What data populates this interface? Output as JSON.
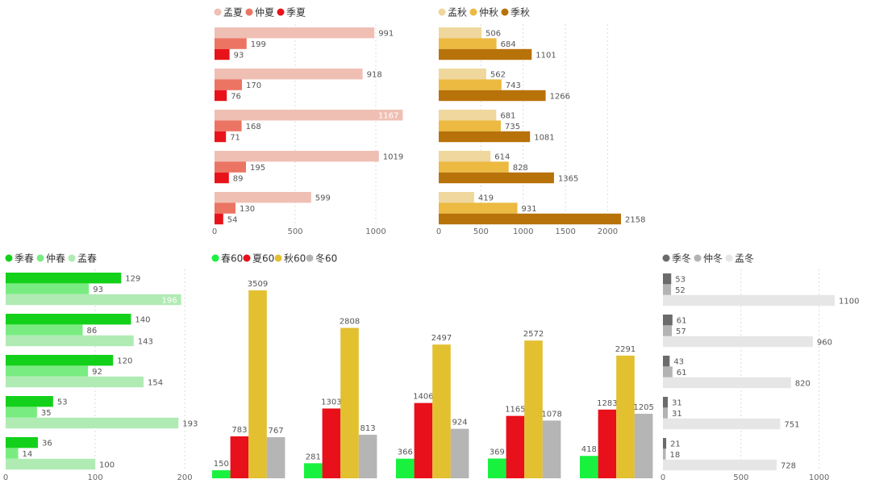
{
  "chart_data": [
    {
      "id": "summer",
      "type": "bar",
      "orientation": "horizontal",
      "series": [
        {
          "name": "孟夏",
          "color": "#f0bfb4",
          "values": [
            991,
            918,
            1167,
            1019,
            599
          ]
        },
        {
          "name": "仲夏",
          "color": "#ec7463",
          "values": [
            199,
            170,
            168,
            195,
            130
          ]
        },
        {
          "name": "季夏",
          "color": "#e8131a",
          "values": [
            93,
            76,
            71,
            89,
            54
          ]
        }
      ],
      "xticks": [
        "0",
        "500",
        "1000"
      ],
      "xlim": [
        0,
        1200
      ],
      "legend": "top-left",
      "grid": true
    },
    {
      "id": "autumn",
      "type": "bar",
      "orientation": "horizontal",
      "series": [
        {
          "name": "孟秋",
          "color": "#efd79d",
          "values": [
            506,
            562,
            681,
            614,
            419
          ]
        },
        {
          "name": "仲秋",
          "color": "#ecb941",
          "values": [
            684,
            743,
            735,
            828,
            931
          ]
        },
        {
          "name": "季秋",
          "color": "#b8720a",
          "values": [
            1101,
            1266,
            1081,
            1365,
            2158
          ]
        }
      ],
      "xticks": [
        "0",
        "500",
        "1000",
        "1500",
        "2000"
      ],
      "xlim": [
        0,
        2200
      ],
      "legend": "top-left",
      "grid": true
    },
    {
      "id": "spring",
      "type": "bar",
      "orientation": "horizontal",
      "series": [
        {
          "name": "季春",
          "color": "#13d11a",
          "values": [
            129,
            140,
            120,
            53,
            36
          ]
        },
        {
          "name": "仲春",
          "color": "#79ec81",
          "values": [
            93,
            86,
            92,
            35,
            14
          ]
        },
        {
          "name": "孟春",
          "color": "#b0ebb4",
          "values": [
            196,
            143,
            154,
            193,
            100
          ]
        }
      ],
      "xticks": [
        "0",
        "100",
        "200"
      ],
      "xlim": [
        0,
        220
      ],
      "legend": "top-left",
      "grid": true
    },
    {
      "id": "totals",
      "type": "bar",
      "orientation": "vertical",
      "categories": [
        "",
        "",
        "",
        "",
        ""
      ],
      "series": [
        {
          "name": "春60",
          "color": "#18f23f",
          "values": [
            150,
            281,
            366,
            369,
            418
          ]
        },
        {
          "name": "夏60",
          "color": "#e8101a",
          "values": [
            783,
            1303,
            1406,
            1165,
            1283
          ]
        },
        {
          "name": "秋60",
          "color": "#e2c030",
          "values": [
            3509,
            2808,
            2497,
            2572,
            2291
          ]
        },
        {
          "name": "冬60",
          "color": "#b5b5b5",
          "values": [
            767,
            813,
            924,
            1078,
            1205
          ]
        }
      ],
      "ylim": [
        0,
        3700
      ],
      "legend": "top-left",
      "grid": false
    },
    {
      "id": "winter",
      "type": "bar",
      "orientation": "horizontal",
      "series": [
        {
          "name": "季冬",
          "color": "#6b6b6b",
          "values": [
            53,
            61,
            43,
            31,
            21
          ]
        },
        {
          "name": "仲冬",
          "color": "#b3b3b3",
          "values": [
            52,
            57,
            61,
            31,
            18
          ]
        },
        {
          "name": "孟冬",
          "color": "#e6e6e6",
          "values": [
            1100,
            960,
            820,
            751,
            728
          ]
        }
      ],
      "xticks": [
        "0",
        "500",
        "1000"
      ],
      "xlim": [
        0,
        1150
      ],
      "legend": "top-left",
      "grid": true
    }
  ]
}
